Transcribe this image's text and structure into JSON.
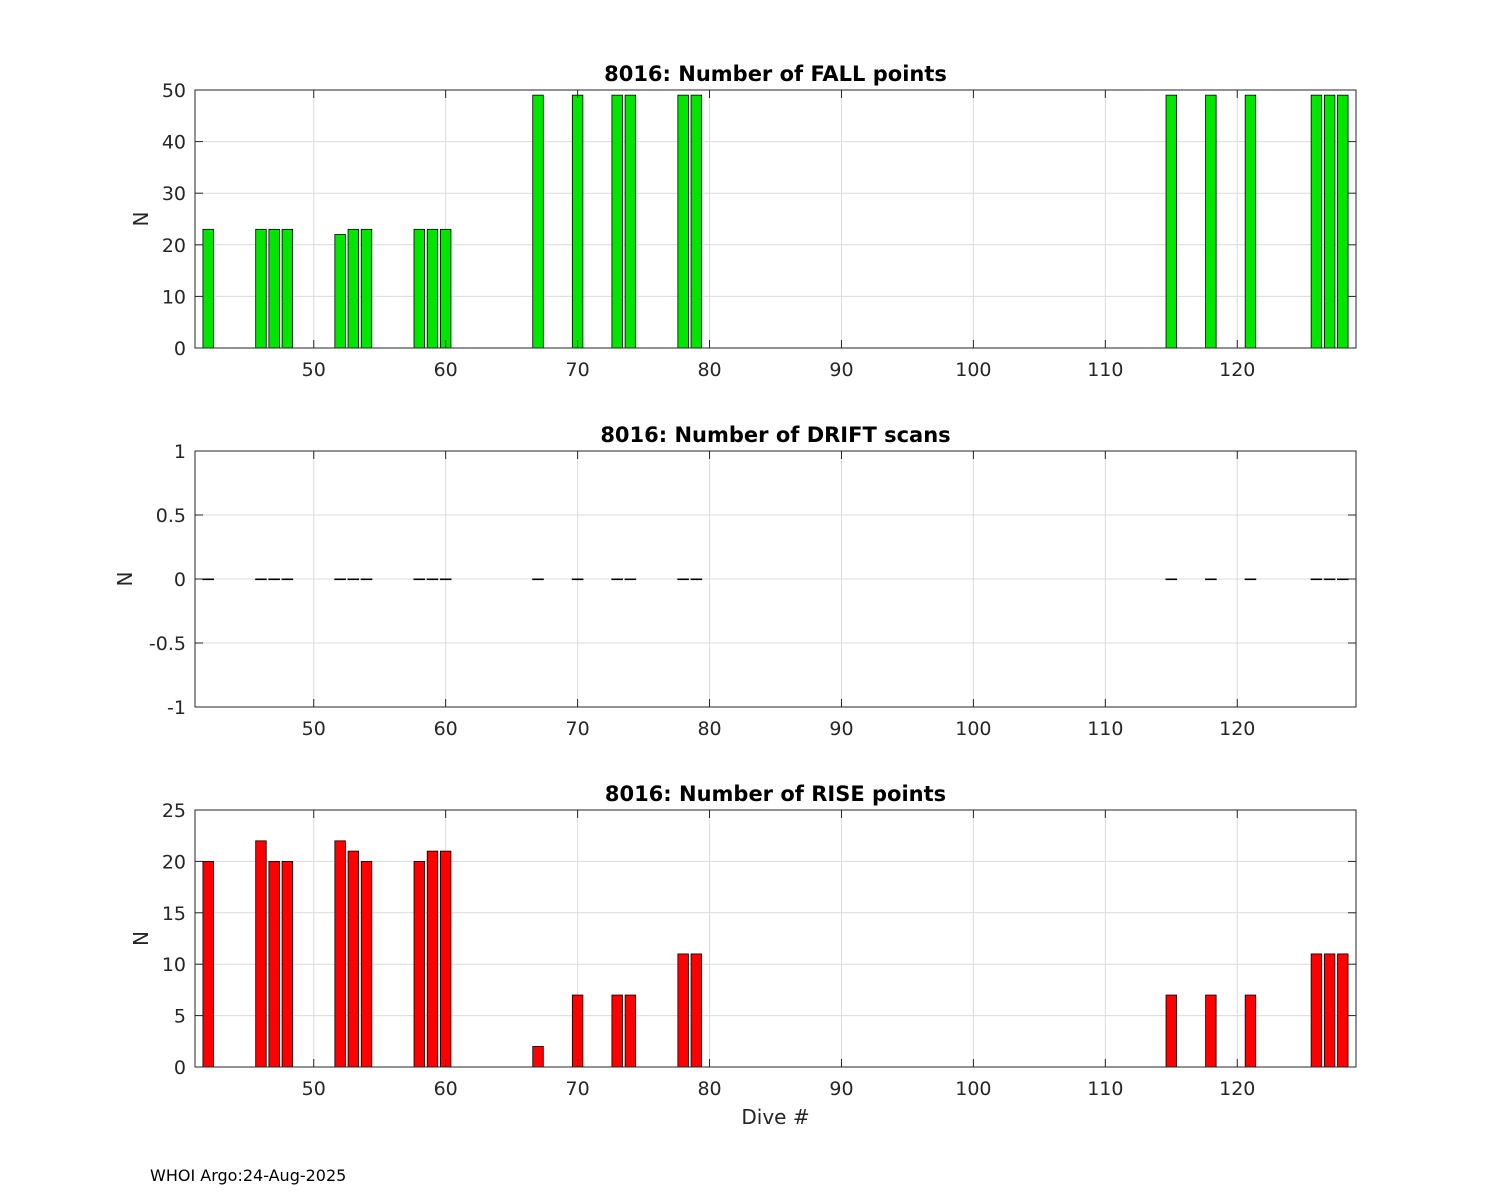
{
  "footer": "WHOI Argo:24-Aug-2025",
  "chart_data": [
    {
      "type": "bar",
      "title": "8016: Number of FALL points",
      "xlabel": "",
      "ylabel": "N",
      "xlim": [
        41,
        129
      ],
      "ylim": [
        0,
        50
      ],
      "xticks": [
        50,
        60,
        70,
        80,
        90,
        100,
        110,
        120
      ],
      "yticks": [
        0,
        10,
        20,
        30,
        40,
        50
      ],
      "ytick_labels": [
        "0",
        "10",
        "20",
        "30",
        "40",
        "50"
      ],
      "grid": true,
      "bar_color": "#00e600",
      "x": [
        42,
        46,
        47,
        48,
        52,
        53,
        54,
        58,
        59,
        60,
        67,
        70,
        73,
        74,
        78,
        79,
        115,
        118,
        121,
        126,
        127,
        128
      ],
      "values": [
        23,
        23,
        23,
        23,
        22,
        23,
        23,
        23,
        23,
        23,
        49,
        49,
        49,
        49,
        49,
        49,
        49,
        49,
        49,
        49,
        49,
        49
      ]
    },
    {
      "type": "bar",
      "title": "8016: Number of DRIFT scans",
      "xlabel": "",
      "ylabel": "N",
      "xlim": [
        41,
        129
      ],
      "ylim": [
        -1,
        1
      ],
      "xticks": [
        50,
        60,
        70,
        80,
        90,
        100,
        110,
        120
      ],
      "yticks": [
        -1,
        -0.5,
        0,
        0.5,
        1
      ],
      "ytick_labels": [
        "-1",
        "-0.5",
        "0",
        "0.5",
        "1"
      ],
      "grid": true,
      "bar_color": "#0000ff",
      "x": [
        42,
        46,
        47,
        48,
        52,
        53,
        54,
        58,
        59,
        60,
        67,
        70,
        73,
        74,
        78,
        79,
        115,
        118,
        121,
        126,
        127,
        128
      ],
      "values": [
        0,
        0,
        0,
        0,
        0,
        0,
        0,
        0,
        0,
        0,
        0,
        0,
        0,
        0,
        0,
        0,
        0,
        0,
        0,
        0,
        0,
        0
      ]
    },
    {
      "type": "bar",
      "title": "8016: Number of RISE points",
      "xlabel": "Dive #",
      "ylabel": "N",
      "xlim": [
        41,
        129
      ],
      "ylim": [
        0,
        25
      ],
      "xticks": [
        50,
        60,
        70,
        80,
        90,
        100,
        110,
        120
      ],
      "yticks": [
        0,
        5,
        10,
        15,
        20,
        25
      ],
      "ytick_labels": [
        "0",
        "5",
        "10",
        "15",
        "20",
        "25"
      ],
      "grid": true,
      "bar_color": "#ff0000",
      "x": [
        42,
        46,
        47,
        48,
        52,
        53,
        54,
        58,
        59,
        60,
        67,
        70,
        73,
        74,
        78,
        79,
        115,
        118,
        121,
        126,
        127,
        128
      ],
      "values": [
        20,
        22,
        20,
        20,
        22,
        21,
        20,
        20,
        21,
        21,
        2,
        7,
        7,
        7,
        11,
        11,
        7,
        7,
        7,
        11,
        11,
        11
      ]
    }
  ]
}
